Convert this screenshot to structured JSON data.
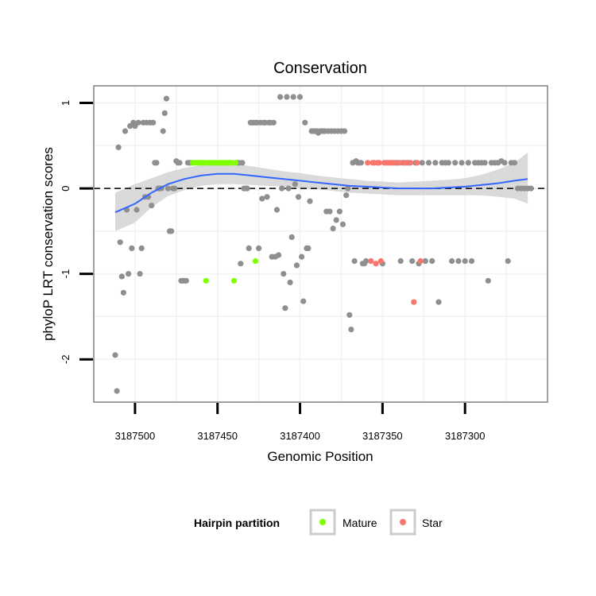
{
  "chart_data": {
    "type": "scatter",
    "title": "Conservation",
    "xlabel": "Genomic Position",
    "ylabel": "phyloP LRT conservation scores",
    "x_reversed": true,
    "xlim": [
      3187250,
      3187525
    ],
    "ylim": [
      -2.5,
      1.2
    ],
    "x_ticks": [
      3187500,
      3187450,
      3187400,
      3187350,
      3187300
    ],
    "x_tick_labels": [
      "3187500",
      "3187450",
      "3187400",
      "3187350",
      "3187300"
    ],
    "y_ticks": [
      1,
      0,
      -1,
      -2
    ],
    "y_tick_labels": [
      "1",
      "0",
      "-1",
      "-2"
    ],
    "reference_line": 0,
    "colors": {
      "other": "#8f8f8f",
      "mature": "#7fff00",
      "star": "#f8766d",
      "smooth": "#3366ff",
      "ribbon": "#d3d3d3",
      "panel_border": "#808080",
      "grid": "#f2f2f2"
    },
    "legend": {
      "title": "Hairpin partition",
      "position": "bottom",
      "entries": [
        {
          "label": "Mature",
          "color": "#7fff00"
        },
        {
          "label": "Star",
          "color": "#f8766d"
        }
      ]
    },
    "series": [
      {
        "name": "Other",
        "points": [
          [
            3187512,
            -1.95
          ],
          [
            3187511,
            -2.37
          ],
          [
            3187510,
            0.48
          ],
          [
            3187509,
            -0.63
          ],
          [
            3187508,
            -1.03
          ],
          [
            3187507,
            -1.22
          ],
          [
            3187506,
            0.67
          ],
          [
            3187505,
            -0.25
          ],
          [
            3187504,
            -1.0
          ],
          [
            3187503,
            0.73
          ],
          [
            3187502,
            -0.7
          ],
          [
            3187501,
            0.77
          ],
          [
            3187500,
            0.73
          ],
          [
            3187499,
            -0.25
          ],
          [
            3187498,
            0.77
          ],
          [
            3187497,
            -1.0
          ],
          [
            3187496,
            -0.7
          ],
          [
            3187495,
            0.77
          ],
          [
            3187494,
            -0.1
          ],
          [
            3187493,
            0.77
          ],
          [
            3187492,
            -0.1
          ],
          [
            3187491,
            0.77
          ],
          [
            3187490,
            -0.2
          ],
          [
            3187489,
            0.77
          ],
          [
            3187488,
            0.3
          ],
          [
            3187487,
            0.3
          ],
          [
            3187486,
            0.0
          ],
          [
            3187485,
            0.0
          ],
          [
            3187484,
            0.0
          ],
          [
            3187483,
            0.67
          ],
          [
            3187482,
            0.88
          ],
          [
            3187481,
            1.05
          ],
          [
            3187480,
            0.0
          ],
          [
            3187479,
            -0.5
          ],
          [
            3187478,
            -0.5
          ],
          [
            3187477,
            0.0
          ],
          [
            3187476,
            0.0
          ],
          [
            3187475,
            0.32
          ],
          [
            3187474,
            0.3
          ],
          [
            3187473,
            0.3
          ],
          [
            3187472,
            -1.08
          ],
          [
            3187471,
            -1.08
          ],
          [
            3187470,
            -1.08
          ],
          [
            3187469,
            -1.08
          ],
          [
            3187468,
            0.3
          ],
          [
            3187467,
            0.3
          ],
          [
            3187466,
            0.3
          ],
          [
            3187438,
            0.3
          ],
          [
            3187437,
            0.3
          ],
          [
            3187436,
            -0.88
          ],
          [
            3187435,
            0.3
          ],
          [
            3187434,
            0.0
          ],
          [
            3187433,
            0.0
          ],
          [
            3187432,
            0.0
          ],
          [
            3187431,
            -0.7
          ],
          [
            3187430,
            0.77
          ],
          [
            3187429,
            0.77
          ],
          [
            3187428,
            0.77
          ],
          [
            3187427,
            0.77
          ],
          [
            3187426,
            0.77
          ],
          [
            3187425,
            -0.7
          ],
          [
            3187424,
            0.77
          ],
          [
            3187423,
            -0.12
          ],
          [
            3187422,
            0.77
          ],
          [
            3187421,
            0.77
          ],
          [
            3187420,
            -0.1
          ],
          [
            3187419,
            0.77
          ],
          [
            3187418,
            0.77
          ],
          [
            3187417,
            -0.8
          ],
          [
            3187416,
            0.77
          ],
          [
            3187415,
            -0.8
          ],
          [
            3187414,
            -0.25
          ],
          [
            3187413,
            -0.78
          ],
          [
            3187412,
            1.07
          ],
          [
            3187411,
            0.0
          ],
          [
            3187410,
            -1.0
          ],
          [
            3187409,
            -1.4
          ],
          [
            3187408,
            1.07
          ],
          [
            3187407,
            0.0
          ],
          [
            3187406,
            -1.1
          ],
          [
            3187405,
            -0.57
          ],
          [
            3187404,
            1.07
          ],
          [
            3187403,
            0.05
          ],
          [
            3187402,
            -0.9
          ],
          [
            3187401,
            -0.1
          ],
          [
            3187400,
            1.07
          ],
          [
            3187399,
            -0.8
          ],
          [
            3187398,
            -1.32
          ],
          [
            3187397,
            0.77
          ],
          [
            3187396,
            -0.7
          ],
          [
            3187395,
            -0.7
          ],
          [
            3187394,
            -0.15
          ],
          [
            3187393,
            0.67
          ],
          [
            3187392,
            0.67
          ],
          [
            3187391,
            0.67
          ],
          [
            3187390,
            0.67
          ],
          [
            3187389,
            0.65
          ],
          [
            3187388,
            0.67
          ],
          [
            3187387,
            0.67
          ],
          [
            3187386,
            0.67
          ],
          [
            3187385,
            0.67
          ],
          [
            3187384,
            -0.27
          ],
          [
            3187383,
            0.67
          ],
          [
            3187382,
            -0.27
          ],
          [
            3187381,
            0.67
          ],
          [
            3187380,
            -0.47
          ],
          [
            3187379,
            0.67
          ],
          [
            3187378,
            -0.37
          ],
          [
            3187377,
            0.67
          ],
          [
            3187376,
            -0.27
          ],
          [
            3187375,
            0.67
          ],
          [
            3187374,
            -0.42
          ],
          [
            3187373,
            0.67
          ],
          [
            3187372,
            -0.08
          ],
          [
            3187371,
            0.0
          ],
          [
            3187370,
            -1.48
          ],
          [
            3187369,
            -1.65
          ],
          [
            3187368,
            0.3
          ],
          [
            3187367,
            -0.85
          ],
          [
            3187366,
            0.32
          ],
          [
            3187365,
            0.3
          ],
          [
            3187364,
            0.3
          ],
          [
            3187363,
            0.3
          ],
          [
            3187362,
            -0.88
          ],
          [
            3187361,
            -0.88
          ],
          [
            3187360,
            -0.85
          ],
          [
            3187350,
            -0.88
          ],
          [
            3187342,
            0.3
          ],
          [
            3187341,
            0.3
          ],
          [
            3187339,
            -0.85
          ],
          [
            3187338,
            0.3
          ],
          [
            3187336,
            0.3
          ],
          [
            3187334,
            0.3
          ],
          [
            3187332,
            -0.85
          ],
          [
            3187330,
            0.3
          ],
          [
            3187328,
            -0.88
          ],
          [
            3187326,
            0.3
          ],
          [
            3187324,
            -0.85
          ],
          [
            3187322,
            0.3
          ],
          [
            3187320,
            -0.85
          ],
          [
            3187318,
            0.3
          ],
          [
            3187316,
            -1.33
          ],
          [
            3187314,
            0.3
          ],
          [
            3187312,
            0.3
          ],
          [
            3187310,
            0.3
          ],
          [
            3187308,
            -0.85
          ],
          [
            3187306,
            0.3
          ],
          [
            3187304,
            -0.85
          ],
          [
            3187302,
            0.3
          ],
          [
            3187300,
            -0.85
          ],
          [
            3187298,
            0.3
          ],
          [
            3187296,
            -0.85
          ],
          [
            3187294,
            0.3
          ],
          [
            3187292,
            0.3
          ],
          [
            3187290,
            0.3
          ],
          [
            3187288,
            0.3
          ],
          [
            3187286,
            -1.08
          ],
          [
            3187284,
            0.3
          ],
          [
            3187282,
            0.3
          ],
          [
            3187280,
            0.3
          ],
          [
            3187278,
            0.32
          ],
          [
            3187276,
            0.3
          ],
          [
            3187274,
            -0.85
          ],
          [
            3187272,
            0.3
          ],
          [
            3187270,
            0.3
          ],
          [
            3187268,
            0.0
          ],
          [
            3187266,
            0.0
          ],
          [
            3187264,
            0.0
          ],
          [
            3187262,
            0.0
          ],
          [
            3187260,
            0.0
          ]
        ]
      },
      {
        "name": "Mature",
        "points": [
          [
            3187465,
            0.3
          ],
          [
            3187464,
            0.3
          ],
          [
            3187463,
            0.3
          ],
          [
            3187462,
            0.3
          ],
          [
            3187461,
            0.3
          ],
          [
            3187460,
            0.3
          ],
          [
            3187459,
            0.3
          ],
          [
            3187458,
            0.3
          ],
          [
            3187457,
            -1.08
          ],
          [
            3187456,
            0.3
          ],
          [
            3187455,
            0.3
          ],
          [
            3187454,
            0.3
          ],
          [
            3187453,
            0.3
          ],
          [
            3187452,
            0.3
          ],
          [
            3187451,
            0.3
          ],
          [
            3187450,
            0.3
          ],
          [
            3187449,
            0.3
          ],
          [
            3187448,
            0.3
          ],
          [
            3187447,
            0.3
          ],
          [
            3187446,
            0.3
          ],
          [
            3187445,
            0.3
          ],
          [
            3187444,
            0.3
          ],
          [
            3187443,
            0.3
          ],
          [
            3187442,
            0.3
          ],
          [
            3187441,
            0.3
          ],
          [
            3187440,
            -1.08
          ],
          [
            3187439,
            0.3
          ],
          [
            3187427,
            -0.85
          ]
        ]
      },
      {
        "name": "Star",
        "points": [
          [
            3187359,
            0.3
          ],
          [
            3187357,
            -0.85
          ],
          [
            3187356,
            0.3
          ],
          [
            3187355,
            0.3
          ],
          [
            3187354,
            -0.88
          ],
          [
            3187353,
            0.3
          ],
          [
            3187352,
            0.3
          ],
          [
            3187351,
            -0.85
          ],
          [
            3187349,
            0.3
          ],
          [
            3187348,
            0.3
          ],
          [
            3187347,
            0.3
          ],
          [
            3187346,
            0.3
          ],
          [
            3187345,
            0.3
          ],
          [
            3187344,
            0.3
          ],
          [
            3187343,
            0.3
          ],
          [
            3187340,
            0.3
          ],
          [
            3187337,
            0.3
          ],
          [
            3187335,
            0.3
          ],
          [
            3187333,
            0.3
          ],
          [
            3187331,
            -1.33
          ],
          [
            3187329,
            0.3
          ],
          [
            3187327,
            -0.85
          ]
        ]
      }
    ],
    "smooth": {
      "name": "Loess fit",
      "x": [
        3187512,
        3187500,
        3187490,
        3187480,
        3187470,
        3187460,
        3187450,
        3187440,
        3187430,
        3187420,
        3187410,
        3187400,
        3187390,
        3187380,
        3187370,
        3187360,
        3187350,
        3187340,
        3187330,
        3187320,
        3187310,
        3187300,
        3187290,
        3187280,
        3187270,
        3187262
      ],
      "y": [
        -0.28,
        -0.18,
        -0.05,
        0.05,
        0.11,
        0.15,
        0.17,
        0.17,
        0.15,
        0.13,
        0.11,
        0.09,
        0.07,
        0.05,
        0.03,
        0.02,
        0.01,
        0.0,
        0.0,
        0.0,
        0.01,
        0.02,
        0.04,
        0.06,
        0.09,
        0.11
      ],
      "upper": [
        -0.05,
        0.05,
        0.12,
        0.19,
        0.24,
        0.27,
        0.29,
        0.29,
        0.26,
        0.23,
        0.2,
        0.18,
        0.15,
        0.13,
        0.11,
        0.09,
        0.08,
        0.07,
        0.08,
        0.09,
        0.1,
        0.12,
        0.16,
        0.22,
        0.3,
        0.42
      ],
      "lower": [
        -0.5,
        -0.4,
        -0.22,
        -0.09,
        -0.02,
        0.03,
        0.05,
        0.05,
        0.04,
        0.03,
        0.02,
        0.0,
        -0.01,
        -0.03,
        -0.05,
        -0.06,
        -0.07,
        -0.08,
        -0.08,
        -0.08,
        -0.08,
        -0.08,
        -0.08,
        -0.1,
        -0.12,
        -0.18
      ]
    }
  }
}
